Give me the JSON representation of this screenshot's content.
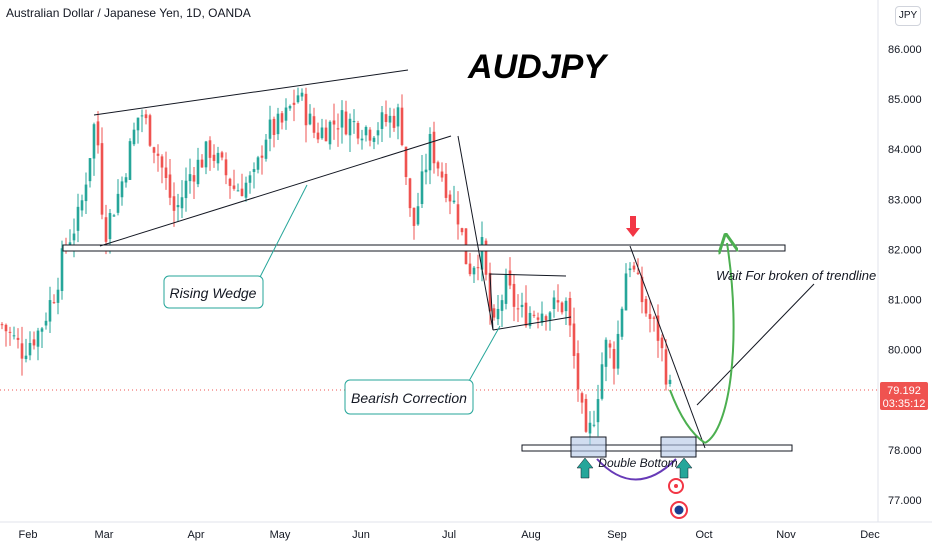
{
  "header": {
    "instrument": "Australian Dollar / Japanese Yen, 1D, OANDA",
    "currency_button": "JPY"
  },
  "price_badge": {
    "price": "79.192",
    "countdown": "03:35:12"
  },
  "colors": {
    "up": "#26a69a",
    "down": "#ef5350",
    "teal_annotation": "#26a69a",
    "curve": "#4caf50",
    "arc": "#673ab7",
    "box": "#b2c7e6",
    "red_arrow": "#f23645"
  },
  "annotations": {
    "title": "AUDJPY",
    "rising_wedge": "Rising Wedge",
    "bearish_correction": "Bearish Correction",
    "double_bottom": "Double Bottom",
    "wait_note": "Wait For broken of trendline"
  },
  "chart_data": {
    "type": "candlestick",
    "title": "AUDJPY",
    "x_ticks": [
      "Feb",
      "Mar",
      "Apr",
      "May",
      "Jun",
      "Jul",
      "Aug",
      "Sep",
      "Oct",
      "Nov",
      "Dec"
    ],
    "y_ticks": [
      "77.000",
      "78.000",
      "79.000",
      "80.000",
      "81.000",
      "82.000",
      "83.000",
      "84.000",
      "85.000",
      "86.000"
    ],
    "ylim": [
      76.5,
      86.9
    ],
    "last_price": 79.192,
    "levels": {
      "resistance": 82.0,
      "support": 78.05
    },
    "key_closes": [
      {
        "date": "Jan 25",
        "close": 80.5
      },
      {
        "date": "Feb 28",
        "close": 82.1
      },
      {
        "date": "Mar 07",
        "close": 84.8
      },
      {
        "date": "Mar 22",
        "close": 82.7
      },
      {
        "date": "May 05",
        "close": 85.2
      },
      {
        "date": "Jun 03",
        "close": 84.7
      },
      {
        "date": "Jun 22",
        "close": 82.2
      },
      {
        "date": "Jul 04",
        "close": 83.9
      },
      {
        "date": "Jul 13",
        "close": 81.4
      },
      {
        "date": "Jul 20",
        "close": 81.4
      },
      {
        "date": "Aug 17",
        "close": 80.1
      },
      {
        "date": "Aug 22",
        "close": 78.3
      },
      {
        "date": "Sep 06",
        "close": 81.9
      },
      {
        "date": "Sep 20",
        "close": 79.5
      },
      {
        "date": "Sep 23",
        "close": 79.192
      }
    ]
  }
}
